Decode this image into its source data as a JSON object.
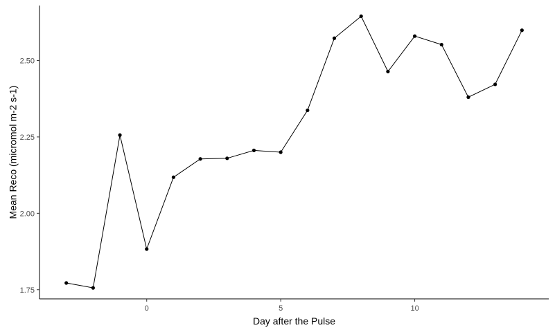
{
  "chart_data": {
    "type": "line",
    "xlabel": "Day after the Pulse",
    "ylabel": "Mean Reco (micromol m-2 s-1)",
    "xlim": [
      -4,
      15
    ],
    "ylim": [
      1.72,
      2.68
    ],
    "xticks": [
      0,
      5,
      10
    ],
    "yticks": [
      1.75,
      2.0,
      2.25,
      2.5
    ],
    "xtick_labels": [
      "0",
      "5",
      "10"
    ],
    "ytick_labels": [
      "1.75",
      "2.00",
      "2.25",
      "2.50"
    ],
    "grid": false,
    "legend": "none",
    "line_color": "#000000",
    "point_color": "#000000",
    "x": [
      -3,
      -2,
      -1,
      0,
      1,
      2,
      3,
      4,
      5,
      6,
      7,
      8,
      9,
      10,
      11,
      12,
      13,
      14
    ],
    "y": [
      1.772,
      1.756,
      2.256,
      1.883,
      2.118,
      2.178,
      2.18,
      2.206,
      2.2,
      2.337,
      2.573,
      2.645,
      2.464,
      2.58,
      2.552,
      2.38,
      2.422,
      2.599
    ]
  }
}
